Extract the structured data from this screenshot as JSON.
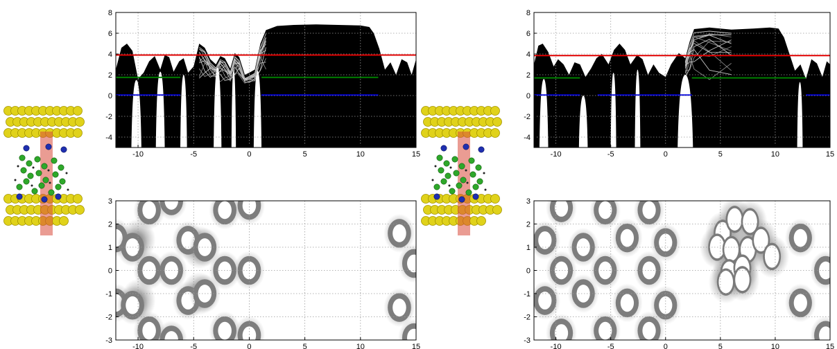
{
  "chart_data": [
    {
      "id": "top-left",
      "type": "line",
      "xlim": [
        -12,
        15
      ],
      "ylim": [
        -5,
        8
      ],
      "xticks": [
        -10,
        -5,
        0,
        5,
        10,
        15
      ],
      "yticks": [
        -4,
        -2,
        0,
        2,
        4,
        6,
        8
      ],
      "grid": true,
      "series": [
        {
          "color": "#e00000",
          "segments": [
            [
              -12,
              3.9,
              15,
              3.9
            ]
          ]
        },
        {
          "color": "#008000",
          "segments": [
            [
              -12,
              1.75,
              -6.2,
              1.75
            ],
            [
              1.1,
              1.75,
              11.6,
              1.75
            ]
          ]
        },
        {
          "color": "#0000dd",
          "segments": [
            [
              -12,
              0.05,
              -6.2,
              0.05
            ],
            [
              1.1,
              0.05,
              11.6,
              0.05
            ]
          ]
        }
      ],
      "bands_profile": {
        "color": "#000000",
        "top_edge": [
          [
            -12,
            2.5
          ],
          [
            -11.5,
            4.6
          ],
          [
            -11,
            5.0
          ],
          [
            -10.5,
            4.3
          ],
          [
            -10,
            1.6
          ],
          [
            -9.5,
            2.2
          ],
          [
            -9,
            3.3
          ],
          [
            -8.5,
            3.8
          ],
          [
            -8,
            2.5
          ],
          [
            -7.6,
            3.9
          ],
          [
            -7.2,
            3.7
          ],
          [
            -6.8,
            2.3
          ],
          [
            -6.3,
            3.3
          ],
          [
            -5.9,
            3.6
          ],
          [
            -5.5,
            2.2
          ],
          [
            -5,
            2.8
          ],
          [
            -4.5,
            5.0
          ],
          [
            -4,
            4.6
          ],
          [
            -3.5,
            3.5
          ],
          [
            -3,
            3.0
          ],
          [
            -2.6,
            3.8
          ],
          [
            -2.2,
            3.6
          ],
          [
            -1.7,
            2.6
          ],
          [
            -1.3,
            4.1
          ],
          [
            -0.9,
            3.7
          ],
          [
            -0.4,
            2.0
          ],
          [
            0,
            2.2
          ],
          [
            0.5,
            2.5
          ],
          [
            1.0,
            5.0
          ],
          [
            1.5,
            6.3
          ],
          [
            2.5,
            6.7
          ],
          [
            4,
            6.8
          ],
          [
            6,
            6.85
          ],
          [
            8,
            6.8
          ],
          [
            10,
            6.75
          ],
          [
            10.8,
            6.6
          ],
          [
            11.2,
            6.0
          ],
          [
            11.7,
            4.5
          ],
          [
            12.2,
            2.5
          ],
          [
            12.7,
            3.2
          ],
          [
            13.2,
            2.0
          ],
          [
            13.7,
            3.5
          ],
          [
            14.2,
            3.2
          ],
          [
            14.6,
            2.0
          ],
          [
            15,
            3.5
          ]
        ],
        "gaps_bottom_to_top": [
          [
            -10.6,
            -9.7,
            1.5
          ],
          [
            -8.4,
            -7.6,
            2.3
          ],
          [
            -6.2,
            -5.6,
            2.0
          ],
          [
            -3.2,
            -2.5,
            2.7
          ],
          [
            -1.6,
            -1.2,
            2.5
          ],
          [
            0.4,
            1.1,
            2.4
          ]
        ],
        "shaded_band": {
          "from": -4.9,
          "to": 1.6
        }
      }
    },
    {
      "id": "top-right",
      "type": "line",
      "xlim": [
        -12,
        15
      ],
      "ylim": [
        -5,
        8
      ],
      "xticks": [
        -10,
        -5,
        0,
        5,
        10,
        15
      ],
      "yticks": [
        -4,
        -2,
        0,
        2,
        4,
        6,
        8
      ],
      "grid": true,
      "series": [
        {
          "color": "#e00000",
          "segments": [
            [
              -12,
              3.85,
              15,
              3.85
            ]
          ]
        },
        {
          "color": "#008000",
          "segments": [
            [
              -12,
              1.7,
              -7.8,
              1.7
            ],
            [
              2.4,
              1.7,
              12.8,
              1.7
            ]
          ]
        },
        {
          "color": "#0000dd",
          "segments": [
            [
              -12,
              0.05,
              -7.8,
              0.05
            ],
            [
              -6.2,
              0.05,
              2.4,
              0.05
            ],
            [
              12.8,
              0.05,
              15,
              0.05
            ]
          ]
        }
      ],
      "bands_profile": {
        "color": "#000000",
        "top_edge": [
          [
            -12,
            3.0
          ],
          [
            -11.6,
            4.8
          ],
          [
            -11.2,
            5.0
          ],
          [
            -10.7,
            4.2
          ],
          [
            -10.2,
            2.8
          ],
          [
            -9.8,
            3.5
          ],
          [
            -9.3,
            3.0
          ],
          [
            -8.8,
            2.0
          ],
          [
            -8.3,
            3.2
          ],
          [
            -7.8,
            3.0
          ],
          [
            -7.3,
            1.8
          ],
          [
            -6.8,
            2.6
          ],
          [
            -6.3,
            3.6
          ],
          [
            -5.8,
            4.0
          ],
          [
            -5.2,
            3.0
          ],
          [
            -4.7,
            4.4
          ],
          [
            -4.2,
            5.0
          ],
          [
            -3.7,
            4.4
          ],
          [
            -3.2,
            3.0
          ],
          [
            -2.6,
            3.9
          ],
          [
            -2.1,
            3.5
          ],
          [
            -1.6,
            2.0
          ],
          [
            -1.1,
            3.0
          ],
          [
            -0.6,
            2.2
          ],
          [
            0,
            1.8
          ],
          [
            0.5,
            3.0
          ],
          [
            1.2,
            4.1
          ],
          [
            1.8,
            3.6
          ],
          [
            2.2,
            5.2
          ],
          [
            2.6,
            6.4
          ],
          [
            4,
            6.55
          ],
          [
            6,
            6.35
          ],
          [
            8,
            6.45
          ],
          [
            9.5,
            6.55
          ],
          [
            10.3,
            6.45
          ],
          [
            10.8,
            5.6
          ],
          [
            11.3,
            4.0
          ],
          [
            11.8,
            2.4
          ],
          [
            12.3,
            3.0
          ],
          [
            12.8,
            1.6
          ],
          [
            13.3,
            3.5
          ],
          [
            13.8,
            3.1
          ],
          [
            14.3,
            1.8
          ],
          [
            14.7,
            3.3
          ],
          [
            15,
            3.0
          ]
        ],
        "gaps_bottom_to_top": [
          [
            -11.5,
            -10.7,
            1.6
          ],
          [
            -7.9,
            -7.1,
            0.0
          ],
          [
            -5.0,
            -4.5,
            2.2
          ],
          [
            -2.8,
            -2.3,
            2.5
          ],
          [
            1.1,
            2.5,
            2.0
          ],
          [
            12.0,
            12.5,
            1.3
          ]
        ],
        "shaded_band": {
          "from": 1.8,
          "to": 6.5
        }
      }
    },
    {
      "id": "bottom-left",
      "type": "heatmap",
      "xlim": [
        -12,
        15
      ],
      "ylim": [
        -3,
        3
      ],
      "xticks": [
        -10,
        -5,
        0,
        5,
        10,
        15
      ],
      "yticks": [
        -3,
        -2,
        -1,
        0,
        1,
        2,
        3
      ],
      "grid": true,
      "rings": [
        [
          -12,
          1.4
        ],
        [
          -12,
          -1.4
        ],
        [
          -10.5,
          1.0
        ],
        [
          -10.5,
          -1.5
        ],
        [
          -9.0,
          2.6
        ],
        [
          -9.0,
          0.0
        ],
        [
          -9.0,
          -2.6
        ],
        [
          -7.0,
          3.0
        ],
        [
          -7.0,
          0.0
        ],
        [
          -7.0,
          -3.0
        ],
        [
          -5.5,
          1.3
        ],
        [
          -5.5,
          -1.3
        ],
        [
          -4.0,
          1.0
        ],
        [
          -4.0,
          -1.0
        ],
        [
          -2.2,
          2.6
        ],
        [
          -2.2,
          0.0
        ],
        [
          -2.2,
          -2.6
        ],
        [
          0,
          2.8
        ],
        [
          0,
          0.0
        ],
        [
          0,
          -2.8
        ],
        [
          13.5,
          1.6
        ],
        [
          13.5,
          -1.6
        ],
        [
          14.8,
          0.3
        ],
        [
          14.8,
          -2.9
        ]
      ],
      "blobs": [
        [
          -10.0,
          1.3
        ],
        [
          -10.0,
          -1.3
        ],
        [
          -4.5,
          1.0
        ],
        [
          -4.5,
          -1.0
        ]
      ]
    },
    {
      "id": "bottom-right",
      "type": "heatmap",
      "xlim": [
        -12,
        15
      ],
      "ylim": [
        -3,
        3
      ],
      "xticks": [
        -10,
        -5,
        0,
        5,
        10,
        15
      ],
      "yticks": [
        -3,
        -2,
        -1,
        0,
        1,
        2,
        3
      ],
      "grid": true,
      "rings": [
        [
          -11.0,
          1.3
        ],
        [
          -11.0,
          -1.3
        ],
        [
          -9.5,
          2.7
        ],
        [
          -9.5,
          0.0
        ],
        [
          -9.5,
          -2.7
        ],
        [
          -7.5,
          1.0
        ],
        [
          -7.5,
          -1.0
        ],
        [
          -5.5,
          2.6
        ],
        [
          -5.5,
          0.0
        ],
        [
          -5.5,
          -2.6
        ],
        [
          -3.5,
          1.4
        ],
        [
          -3.5,
          -1.4
        ],
        [
          -1.5,
          2.6
        ],
        [
          -1.5,
          0.0
        ],
        [
          -1.5,
          -2.6
        ],
        [
          0,
          1.2
        ],
        [
          0,
          -1.5
        ],
        [
          12.3,
          1.4
        ],
        [
          12.3,
          -1.4
        ],
        [
          14.6,
          0.0
        ],
        [
          14.6,
          -2.8
        ]
      ],
      "blobs": [
        [
          5.2,
          1.6
        ],
        [
          6.3,
          2.2
        ],
        [
          7.7,
          2.1
        ],
        [
          4.7,
          1.0
        ],
        [
          6.0,
          0.9
        ],
        [
          7.5,
          0.9
        ],
        [
          8.7,
          1.3
        ],
        [
          9.7,
          0.6
        ],
        [
          5.8,
          -0.1
        ],
        [
          7.0,
          0.1
        ],
        [
          5.5,
          -0.5
        ],
        [
          7.0,
          -0.4
        ]
      ]
    }
  ]
}
